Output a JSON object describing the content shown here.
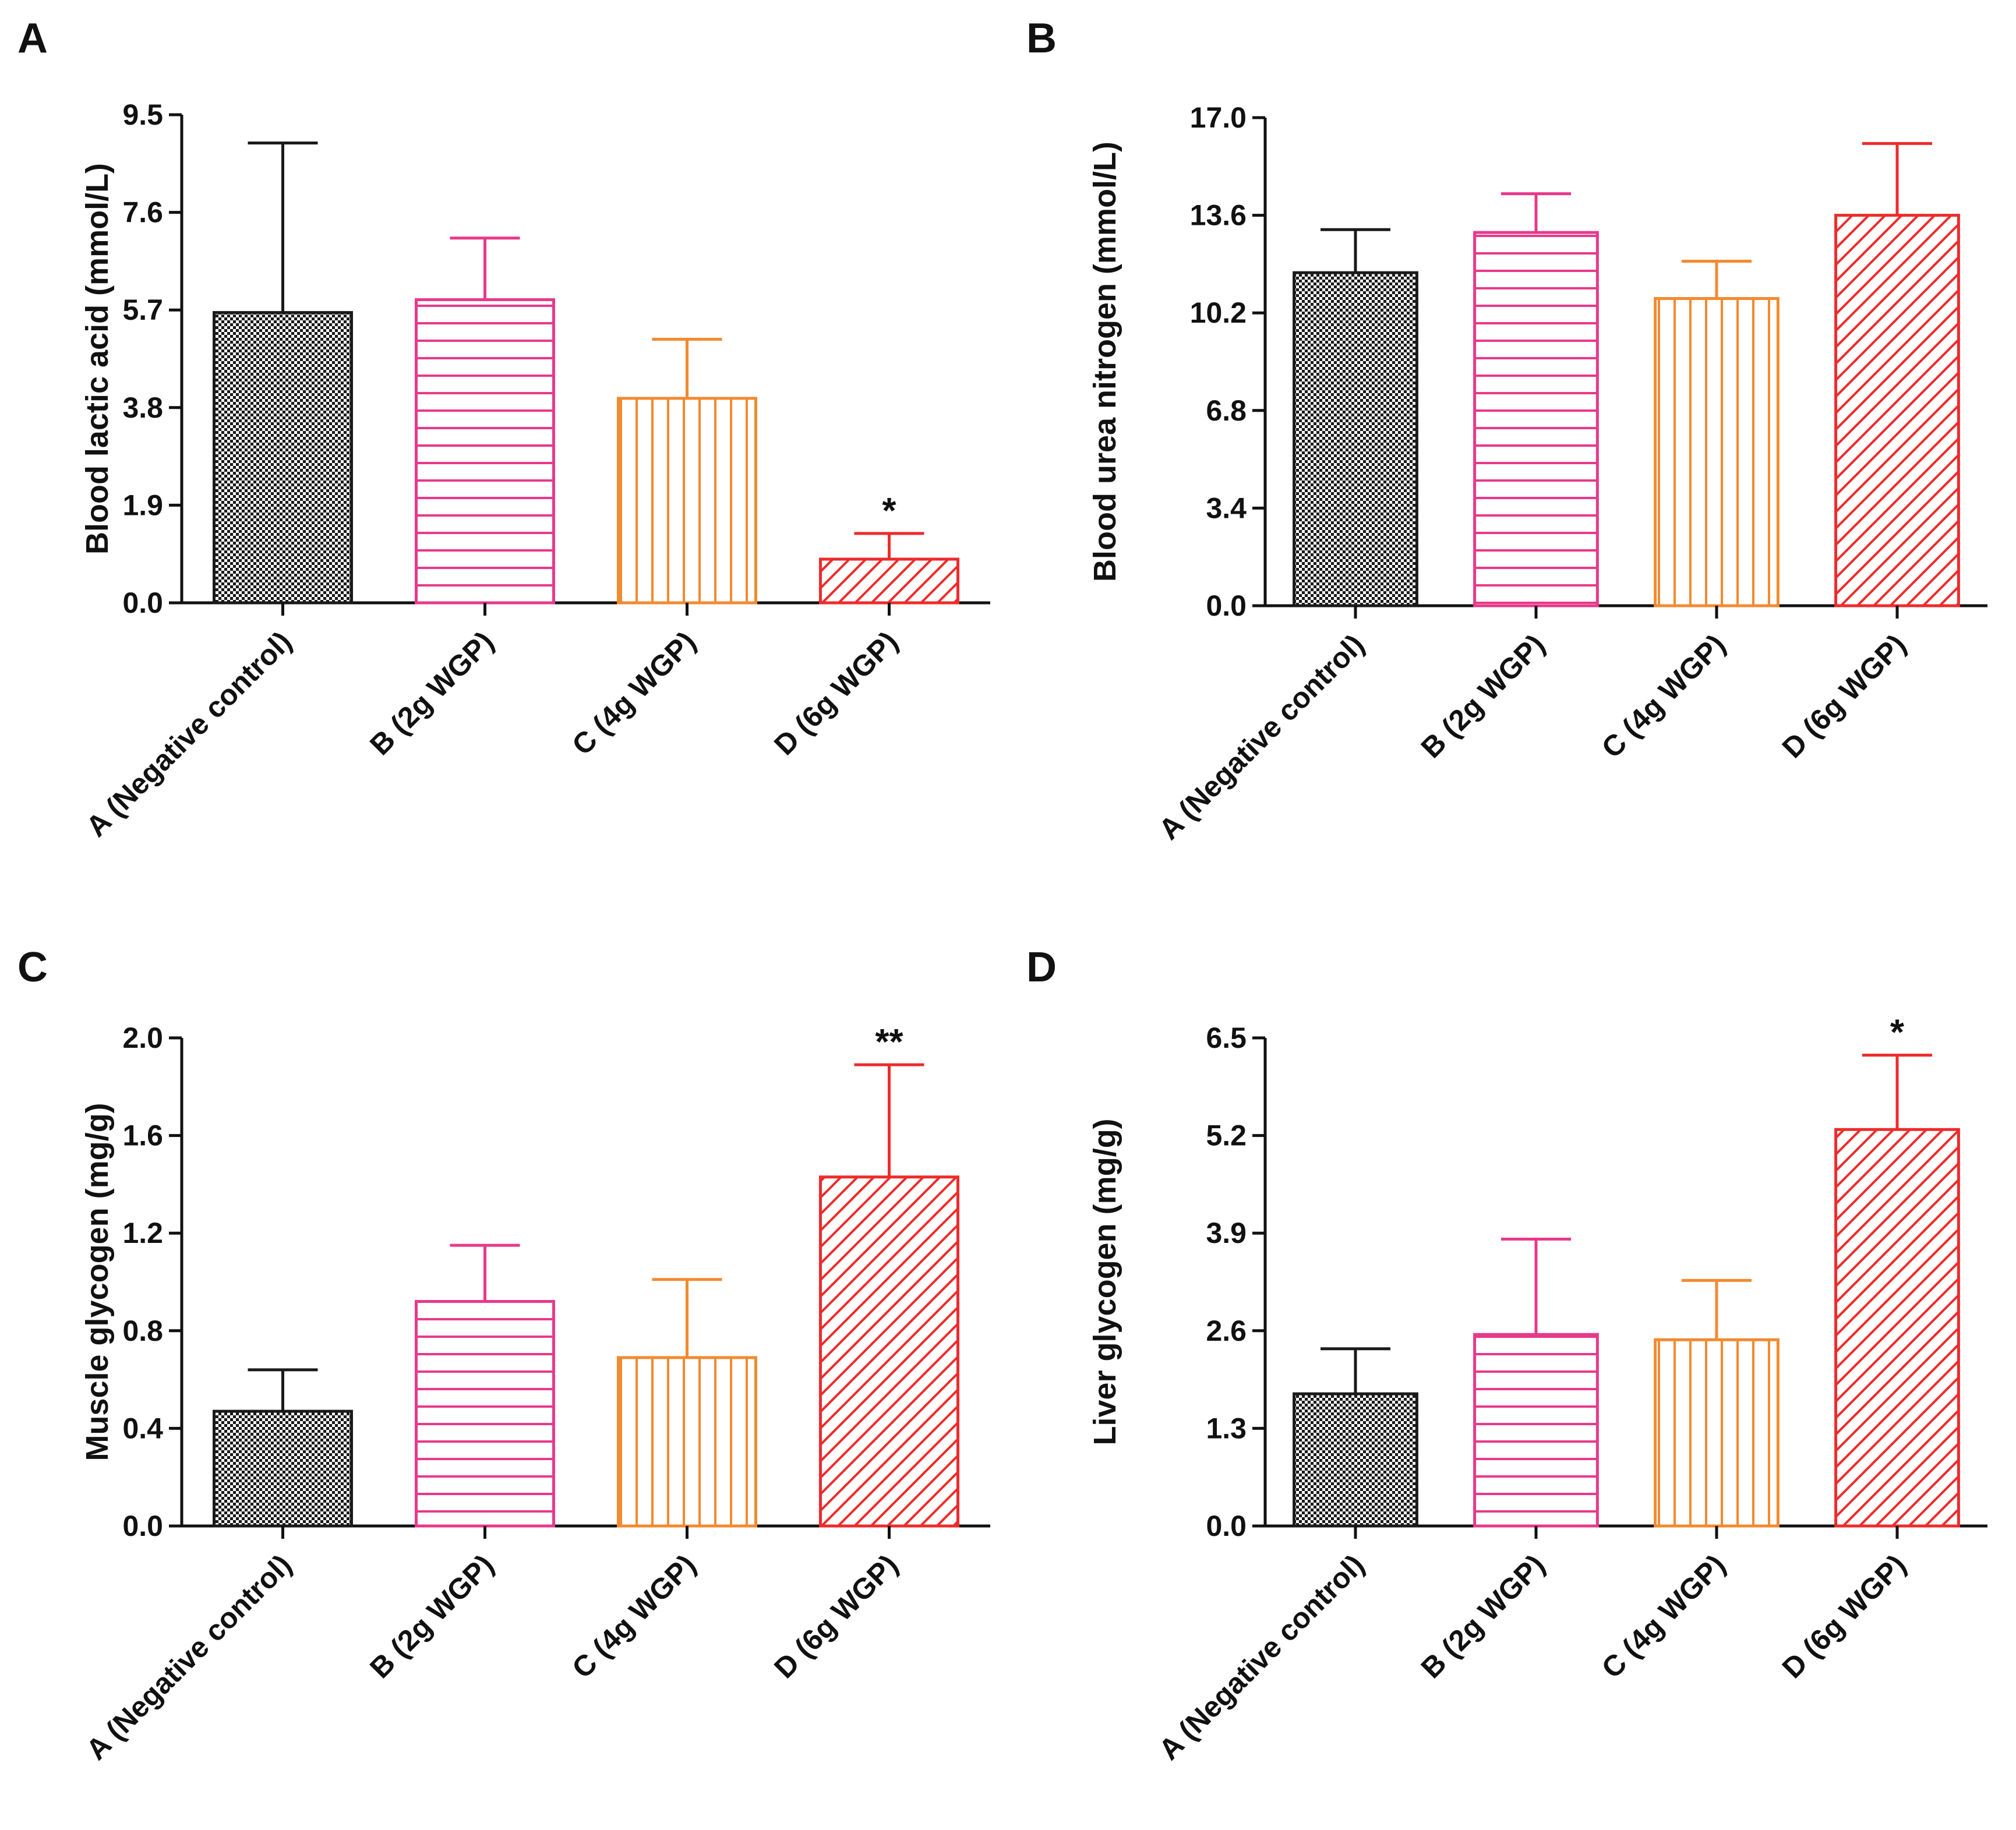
{
  "colors": {
    "black": "#1a1a1a",
    "pink": "#e8398a",
    "orange": "#f28a30",
    "red": "#ee2b2b",
    "axis": "#111111"
  },
  "chart_data": [
    {
      "panel": "A",
      "type": "bar",
      "ylabel": "Blood lactic acid (mmol/L)",
      "categories": [
        "A (Negative control)",
        "B (2g WGP)",
        "C (4g WGP)",
        "D (6g WGP)"
      ],
      "values": [
        5.65,
        5.9,
        3.98,
        0.85
      ],
      "errors": [
        3.3,
        1.2,
        1.15,
        0.5
      ],
      "significance": [
        "",
        "",
        "",
        "*"
      ],
      "ylim": [
        0,
        9.5
      ],
      "yticks": [
        "0.0",
        "1.9",
        "3.8",
        "5.7",
        "7.6",
        "9.5"
      ]
    },
    {
      "panel": "B",
      "type": "bar",
      "ylabel": "Blood urea nitrogen (mmol/L)",
      "categories": [
        "A (Negative control)",
        "B (2g WGP)",
        "C (4g WGP)",
        "D (6g WGP)"
      ],
      "values": [
        11.6,
        13.0,
        10.7,
        13.6
      ],
      "errors": [
        1.5,
        1.35,
        1.3,
        2.5
      ],
      "significance": [
        "",
        "",
        "",
        ""
      ],
      "ylim": [
        0,
        17.0
      ],
      "yticks": [
        "0.0",
        "3.4",
        "6.8",
        "10.2",
        "13.6",
        "17.0"
      ]
    },
    {
      "panel": "C",
      "type": "bar",
      "ylabel": "Muscle glycogen (mg/g)",
      "categories": [
        "A (Negative control)",
        "B (2g WGP)",
        "C (4g WGP)",
        "D (6g WGP)"
      ],
      "values": [
        0.47,
        0.92,
        0.69,
        1.43
      ],
      "errors": [
        0.17,
        0.23,
        0.32,
        0.46
      ],
      "significance": [
        "",
        "",
        "",
        "**"
      ],
      "ylim": [
        0,
        2.0
      ],
      "yticks": [
        "0.0",
        "0.4",
        "0.8",
        "1.2",
        "1.6",
        "2.0"
      ]
    },
    {
      "panel": "D",
      "type": "bar",
      "ylabel": "Liver glycogen (mg/g)",
      "categories": [
        "A (Negative control)",
        "B (2g WGP)",
        "C (4g WGP)",
        "D (6g WGP)"
      ],
      "values": [
        1.76,
        2.55,
        2.48,
        5.28
      ],
      "errors": [
        0.6,
        1.27,
        0.79,
        0.99
      ],
      "significance": [
        "",
        "",
        "",
        "*"
      ],
      "ylim": [
        0,
        6.5
      ],
      "yticks": [
        "0.0",
        "1.3",
        "2.6",
        "3.9",
        "5.2",
        "6.5"
      ]
    }
  ]
}
